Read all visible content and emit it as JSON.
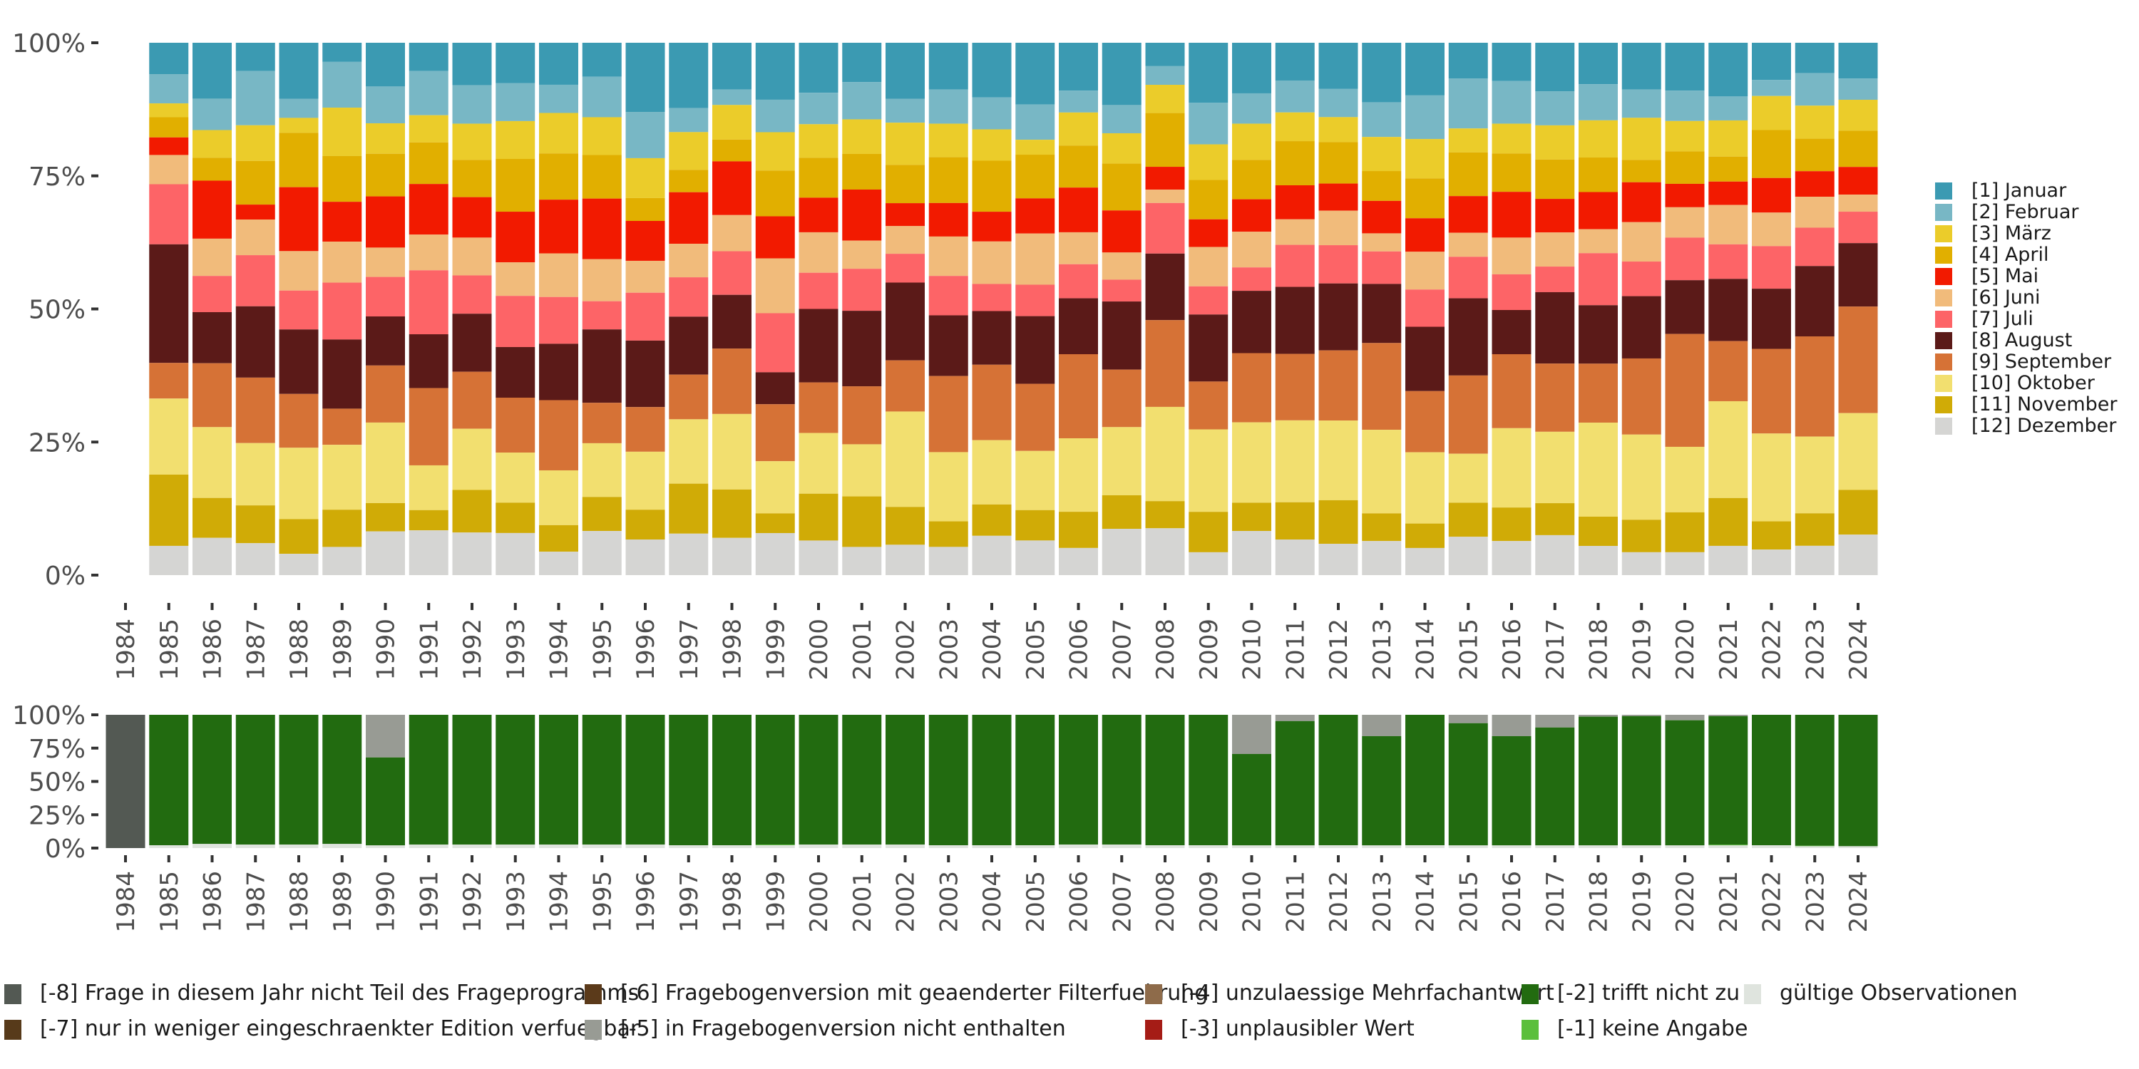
{
  "chart_data": [
    {
      "type": "bar",
      "stacked": "percent",
      "title": "",
      "xlabel": "",
      "ylabel": "",
      "ylim": [
        0,
        100
      ],
      "yticks": [
        "0%",
        "25%",
        "50%",
        "75%",
        "100%"
      ],
      "categories": [
        "1984",
        "1985",
        "1986",
        "1987",
        "1988",
        "1989",
        "1990",
        "1991",
        "1992",
        "1993",
        "1994",
        "1995",
        "1996",
        "1997",
        "1998",
        "1999",
        "2000",
        "2001",
        "2002",
        "2003",
        "2004",
        "2005",
        "2006",
        "2007",
        "2008",
        "2009",
        "2010",
        "2011",
        "2012",
        "2013",
        "2014",
        "2015",
        "2016",
        "2017",
        "2018",
        "2019",
        "2020",
        "2021",
        "2022",
        "2023",
        "2024"
      ],
      "legend_position": "right",
      "series": [
        {
          "name": "[1] Januar",
          "color": "#3b9ab2",
          "values": [
            null,
            5.9,
            10.5,
            5.3,
            10.5,
            3.6,
            8.2,
            5.3,
            8.0,
            7.6,
            7.9,
            6.4,
            13.0,
            12.3,
            8.8,
            10.7,
            9.4,
            7.4,
            10.5,
            8.8,
            10.3,
            11.6,
            9.0,
            11.7,
            4.4,
            11.3,
            9.5,
            7.1,
            8.7,
            11.2,
            9.9,
            6.7,
            7.2,
            9.1,
            7.8,
            8.8,
            9.0,
            10.1,
            7.0,
            5.7,
            6.7
          ]
        },
        {
          "name": "[2] Februar",
          "color": "#78b7c5",
          "values": [
            null,
            5.5,
            5.9,
            10.2,
            3.6,
            8.6,
            6.9,
            8.3,
            7.2,
            7.1,
            5.3,
            7.6,
            8.7,
            4.5,
            2.9,
            6.1,
            5.9,
            7.0,
            4.5,
            6.4,
            6.0,
            6.6,
            4.1,
            5.3,
            3.5,
            7.8,
            5.7,
            6.0,
            5.3,
            6.5,
            8.2,
            9.4,
            8.0,
            6.4,
            6.8,
            5.3,
            5.7,
            4.5,
            3.0,
            6.1,
            4.0
          ]
        },
        {
          "name": "[3] März",
          "color": "#ebcc2a",
          "values": [
            null,
            2.6,
            5.2,
            6.7,
            2.8,
            9.1,
            5.7,
            5.1,
            6.8,
            7.1,
            7.6,
            7.1,
            7.5,
            7.1,
            6.5,
            7.2,
            6.3,
            6.5,
            7.9,
            6.3,
            5.9,
            2.8,
            6.2,
            5.7,
            5.3,
            6.7,
            6.8,
            5.4,
            4.7,
            6.4,
            7.4,
            4.5,
            5.6,
            6.4,
            7.0,
            7.9,
            5.7,
            6.8,
            6.4,
            6.2,
            5.8
          ]
        },
        {
          "name": "[4] April",
          "color": "#e1af00",
          "values": [
            null,
            3.8,
            4.3,
            8.2,
            10.2,
            8.6,
            8.0,
            7.8,
            7.0,
            9.9,
            8.7,
            8.2,
            4.3,
            4.2,
            4.1,
            8.6,
            7.5,
            6.7,
            7.2,
            8.6,
            9.6,
            8.2,
            7.9,
            8.8,
            10.1,
            7.4,
            7.4,
            8.3,
            7.8,
            5.6,
            7.5,
            8.2,
            7.2,
            7.4,
            6.5,
            4.2,
            6.1,
            4.7,
            9.0,
            6.1,
            6.8
          ]
        },
        {
          "name": "[5] Mai",
          "color": "#f21a00",
          "values": [
            null,
            3.3,
            10.9,
            2.8,
            12.0,
            7.5,
            9.6,
            9.5,
            7.6,
            9.5,
            10.1,
            11.4,
            7.5,
            9.7,
            10.1,
            7.9,
            6.5,
            9.6,
            4.3,
            6.3,
            5.6,
            6.6,
            8.4,
            7.9,
            4.3,
            5.2,
            6.1,
            6.4,
            5.1,
            6.1,
            6.3,
            6.9,
            8.6,
            6.3,
            7.0,
            7.5,
            4.4,
            4.4,
            6.5,
            4.8,
            5.2
          ]
        },
        {
          "name": "[6] Juni",
          "color": "#f1bb7b",
          "values": [
            null,
            5.5,
            7.0,
            6.7,
            7.4,
            7.7,
            5.5,
            6.7,
            7.1,
            6.3,
            8.2,
            7.9,
            6.0,
            6.3,
            6.8,
            10.3,
            7.6,
            5.3,
            5.2,
            7.4,
            8.0,
            9.6,
            6.0,
            5.1,
            2.5,
            7.4,
            6.7,
            4.8,
            6.5,
            3.4,
            7.1,
            4.5,
            6.9,
            6.4,
            4.5,
            7.4,
            5.7,
            7.4,
            6.3,
            5.8,
            3.2
          ]
        },
        {
          "name": "[7] Juli",
          "color": "#fd6467",
          "values": [
            null,
            11.3,
            6.8,
            9.6,
            7.3,
            10.7,
            7.4,
            12.0,
            7.2,
            9.6,
            8.8,
            5.3,
            9.0,
            7.4,
            8.2,
            11.1,
            6.8,
            7.9,
            5.4,
            7.4,
            5.1,
            5.9,
            6.4,
            4.1,
            9.5,
            5.3,
            4.4,
            7.9,
            7.2,
            6.1,
            7.0,
            7.8,
            6.7,
            4.8,
            9.8,
            6.5,
            8.0,
            6.5,
            8.0,
            7.2,
            5.9
          ]
        },
        {
          "name": "[8] August",
          "color": "#5b1a18",
          "values": [
            null,
            22.3,
            9.6,
            13.4,
            12.1,
            13.0,
            9.2,
            10.1,
            10.9,
            9.5,
            10.6,
            13.8,
            12.5,
            10.9,
            10.1,
            6.0,
            13.8,
            14.2,
            14.6,
            11.4,
            10.1,
            12.7,
            10.5,
            12.8,
            12.5,
            12.6,
            11.7,
            12.6,
            12.6,
            11.1,
            12.1,
            14.5,
            8.3,
            13.4,
            11.0,
            11.7,
            10.1,
            11.7,
            11.3,
            13.2,
            11.9
          ]
        },
        {
          "name": "[9] September",
          "color": "#d67236",
          "values": [
            null,
            6.7,
            12.0,
            12.3,
            10.1,
            6.8,
            10.7,
            14.5,
            10.7,
            10.3,
            13.2,
            7.6,
            8.4,
            8.4,
            12.3,
            10.7,
            9.5,
            10.9,
            9.6,
            14.3,
            14.2,
            12.6,
            15.8,
            10.8,
            16.3,
            9.0,
            13.0,
            12.5,
            13.2,
            16.3,
            11.5,
            14.7,
            13.9,
            12.8,
            11.1,
            14.3,
            21.2,
            11.3,
            15.9,
            18.8,
            20.0
          ]
        },
        {
          "name": "[10] Oktober",
          "color": "#f2df6f",
          "values": [
            null,
            14.3,
            13.3,
            11.7,
            13.4,
            12.2,
            15.1,
            8.4,
            11.5,
            9.4,
            10.3,
            10.1,
            10.9,
            12.1,
            14.2,
            9.8,
            11.4,
            9.8,
            17.9,
            13.0,
            12.1,
            11.1,
            13.8,
            12.8,
            17.7,
            15.5,
            15.1,
            15.4,
            15.0,
            15.7,
            13.4,
            9.2,
            14.9,
            13.4,
            17.7,
            16.0,
            12.3,
            18.2,
            16.5,
            14.4,
            14.4
          ]
        },
        {
          "name": "[11] November",
          "color": "#d0ab06",
          "values": [
            null,
            13.4,
            7.5,
            7.1,
            6.5,
            7.0,
            5.3,
            3.8,
            8.0,
            5.7,
            5.0,
            6.4,
            5.6,
            9.4,
            9.1,
            3.7,
            8.8,
            9.5,
            7.1,
            4.8,
            5.9,
            5.7,
            6.8,
            6.3,
            5.1,
            7.6,
            5.3,
            7.0,
            8.2,
            5.2,
            4.6,
            6.4,
            6.3,
            6.0,
            5.5,
            6.1,
            7.5,
            9.0,
            5.3,
            6.1,
            8.4
          ]
        },
        {
          "name": "[12] Dezember",
          "color": "#d5d5d3",
          "values": [
            null,
            5.5,
            7.0,
            6.0,
            4.0,
            5.3,
            8.2,
            8.4,
            8.0,
            7.9,
            4.4,
            8.3,
            6.7,
            7.8,
            7.0,
            7.9,
            6.5,
            5.3,
            5.7,
            5.3,
            7.4,
            6.5,
            5.1,
            8.7,
            8.8,
            4.3,
            8.3,
            6.7,
            5.9,
            6.4,
            5.1,
            7.2,
            6.4,
            7.5,
            5.5,
            4.3,
            4.3,
            5.5,
            4.8,
            5.5,
            7.6
          ]
        }
      ]
    },
    {
      "type": "bar",
      "stacked": "percent",
      "title": "",
      "xlabel": "",
      "ylabel": "",
      "ylim": [
        0,
        100
      ],
      "yticks": [
        "0%",
        "25%",
        "50%",
        "75%",
        "100%"
      ],
      "categories": [
        "1984",
        "1985",
        "1986",
        "1987",
        "1988",
        "1989",
        "1990",
        "1991",
        "1992",
        "1993",
        "1994",
        "1995",
        "1996",
        "1997",
        "1998",
        "1999",
        "2000",
        "2001",
        "2002",
        "2003",
        "2004",
        "2005",
        "2006",
        "2007",
        "2008",
        "2009",
        "2010",
        "2011",
        "2012",
        "2013",
        "2014",
        "2015",
        "2016",
        "2017",
        "2018",
        "2019",
        "2020",
        "2021",
        "2022",
        "2023",
        "2024"
      ],
      "legend_position": "bottom",
      "series": [
        {
          "name": "[-8] Frage in diesem Jahr nicht Teil des Frageprogramms",
          "color": "#535953",
          "values": [
            100,
            0,
            0,
            0,
            0,
            0,
            0,
            0,
            0,
            0,
            0,
            0,
            0,
            0,
            0,
            0,
            0,
            0,
            0,
            0,
            0,
            0,
            0,
            0,
            0,
            0,
            0,
            0,
            0,
            0,
            0,
            0,
            0,
            0,
            0,
            0,
            0,
            0,
            0,
            0,
            0
          ]
        },
        {
          "name": "[-7] nur in weniger eingeschraenkter Edition verfuegbar",
          "color": "#573a1a",
          "values": [
            0,
            0,
            0,
            0,
            0,
            0,
            0,
            0,
            0,
            0,
            0,
            0,
            0,
            0,
            0,
            0,
            0,
            0,
            0,
            0,
            0,
            0,
            0,
            0,
            0,
            0,
            0,
            0,
            0,
            0,
            0,
            0,
            0,
            0,
            0,
            0,
            0,
            0,
            0,
            0,
            0
          ]
        },
        {
          "name": "[-6] Fragebogenversion mit geaenderter Filterfuehrung",
          "color": "#5b3a1a",
          "values": [
            0,
            0,
            0,
            0,
            0,
            0,
            0,
            0,
            0,
            0,
            0,
            0,
            0,
            0,
            0,
            0,
            0,
            0,
            0,
            0,
            0,
            0,
            0,
            0,
            0,
            0,
            0,
            0,
            0,
            0,
            0,
            0,
            0,
            0,
            0,
            0,
            0,
            0,
            0,
            0,
            0
          ]
        },
        {
          "name": "[-5] in Fragebogenversion nicht enthalten",
          "color": "#989b94",
          "values": [
            0,
            0,
            0,
            0,
            0,
            0,
            32.0,
            0,
            0,
            0,
            0,
            0,
            0,
            0,
            0,
            0,
            0,
            0,
            0,
            0,
            0,
            0,
            0,
            0,
            0,
            0,
            29.4,
            4.7,
            0,
            16.0,
            0,
            6.3,
            16.0,
            9.5,
            1.4,
            1.0,
            4.1,
            1.0,
            0,
            0,
            0
          ]
        },
        {
          "name": "[-4] unzulaessige Mehrfachantwort",
          "color": "#8e6b4a",
          "values": [
            0,
            0,
            0,
            0,
            0,
            0,
            0,
            0,
            0,
            0,
            0,
            0,
            0,
            0,
            0,
            0,
            0,
            0,
            0,
            0,
            0,
            0,
            0,
            0,
            0,
            0,
            0,
            0,
            0,
            0,
            0,
            0,
            0,
            0,
            0,
            0,
            0,
            0,
            0,
            0,
            0
          ]
        },
        {
          "name": "[-3] unplausibler Wert",
          "color": "#a51c16",
          "values": [
            0,
            0,
            0,
            0,
            0,
            0,
            0,
            0,
            0,
            0,
            0,
            0,
            0,
            0,
            0,
            0,
            0,
            0,
            0,
            0,
            0,
            0,
            0,
            0,
            0,
            0,
            0,
            0,
            0,
            0,
            0,
            0,
            0,
            0,
            0,
            0,
            0,
            0,
            0,
            0,
            0
          ]
        },
        {
          "name": "[-2] trifft nicht zu",
          "color": "#226b10",
          "values": [
            0,
            97.9,
            96.9,
            97.4,
            97.4,
            96.9,
            66.0,
            97.4,
            97.4,
            97.4,
            97.4,
            97.4,
            97.4,
            97.9,
            97.9,
            97.4,
            97.4,
            97.4,
            97.4,
            97.9,
            97.9,
            97.9,
            97.4,
            97.4,
            97.9,
            97.9,
            68.6,
            93.3,
            97.9,
            82.0,
            97.9,
            91.7,
            82.0,
            88.5,
            96.6,
            97.0,
            93.9,
            96.5,
            97.9,
            98.3,
            98.6
          ]
        },
        {
          "name": "[-1] keine Angabe",
          "color": "#5bbf3c",
          "values": [
            0,
            0,
            0,
            0,
            0,
            0,
            0,
            0,
            0,
            0,
            0,
            0,
            0,
            0,
            0,
            0.5,
            0,
            0,
            0,
            0,
            0,
            0,
            0,
            0,
            0,
            0,
            0,
            0,
            0,
            0,
            0,
            0,
            0,
            0,
            0,
            0,
            0,
            0.5,
            0,
            0.3,
            0
          ]
        },
        {
          "name": "gültige Observationen",
          "color": "#dfe4de",
          "values": [
            0,
            2.1,
            3.1,
            2.6,
            2.6,
            3.1,
            2.0,
            2.6,
            2.6,
            2.6,
            2.6,
            2.6,
            2.6,
            2.1,
            2.1,
            2.1,
            2.6,
            2.6,
            2.6,
            2.1,
            2.1,
            2.1,
            2.6,
            2.6,
            2.1,
            2.1,
            2.0,
            2.0,
            2.1,
            2.0,
            2.1,
            2.0,
            2.0,
            2.0,
            2.0,
            2.0,
            2.0,
            2.0,
            2.1,
            1.4,
            1.4
          ]
        }
      ]
    }
  ]
}
